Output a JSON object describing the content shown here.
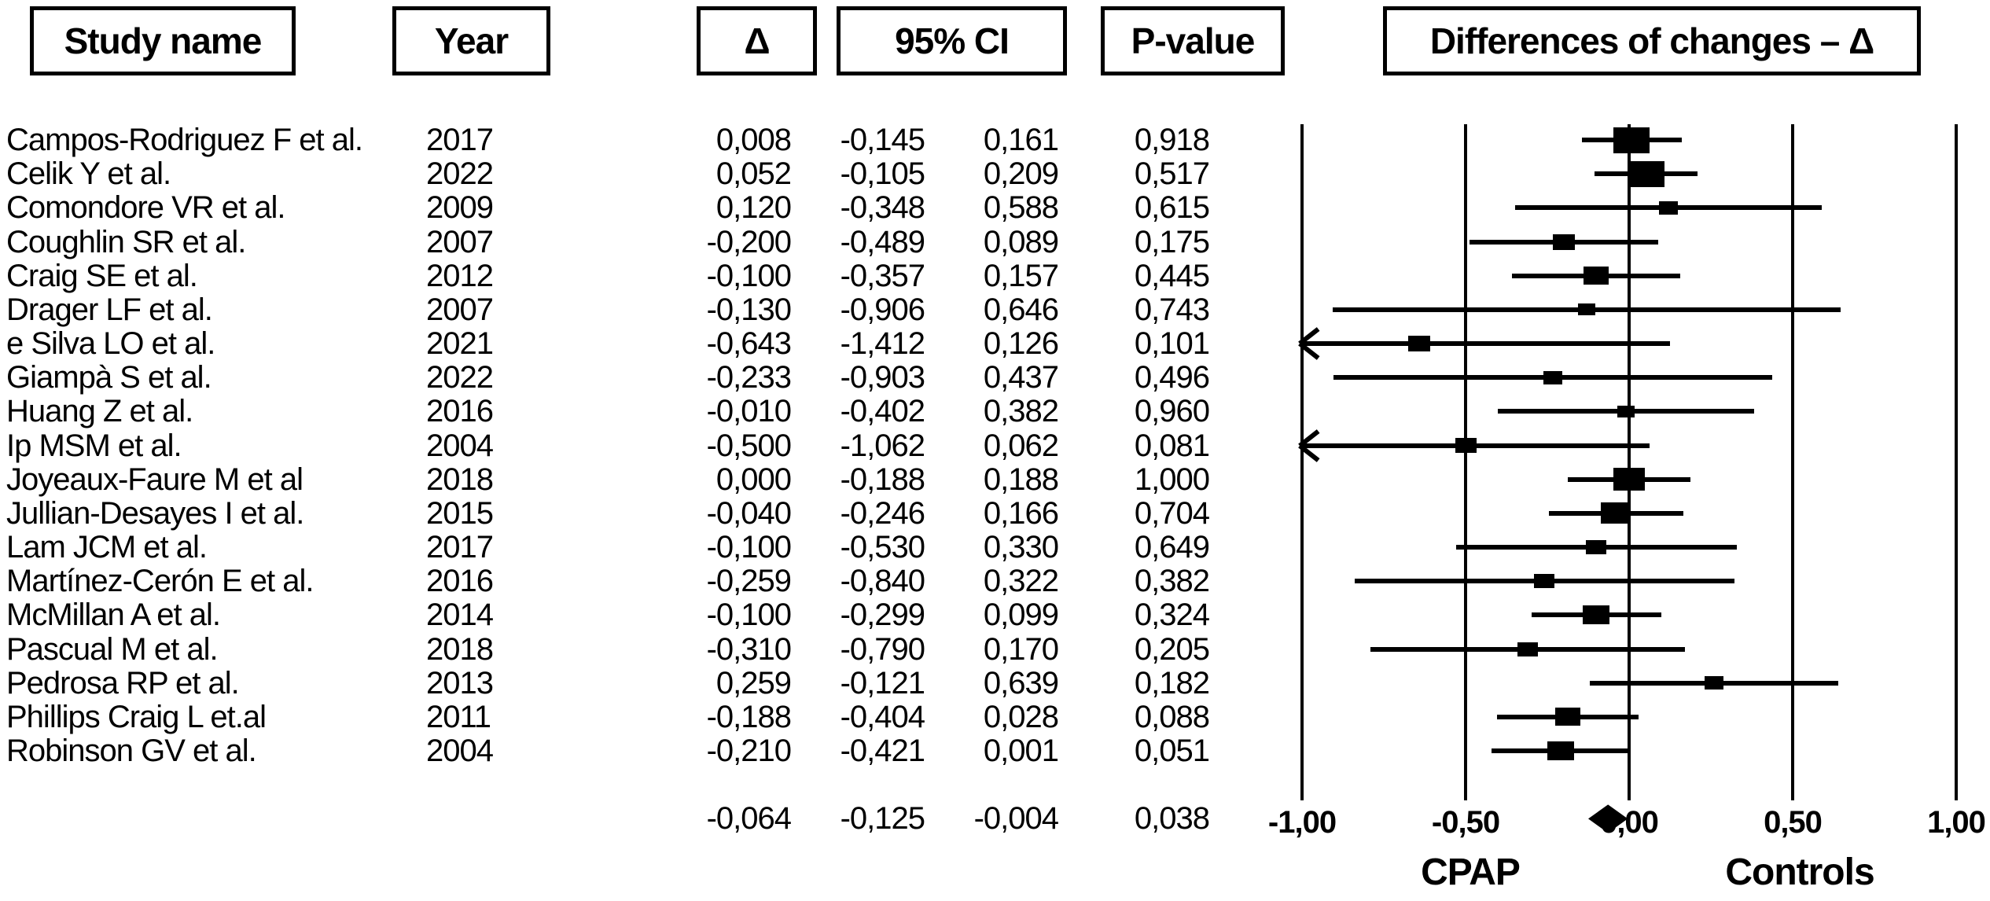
{
  "headers": {
    "study_name": "Study name",
    "year": "Year",
    "delta": "Δ",
    "ci": "95% CI",
    "p_value": "P-value",
    "plot_title": "Differences of changes – Δ"
  },
  "colors": {
    "ink": "#000000",
    "background": "#ffffff"
  },
  "chart_data": {
    "type": "forest",
    "title": "Differences of changes – Δ",
    "x_axis": {
      "min": -1.0,
      "max": 1.0,
      "tick_labels": [
        "-1,00",
        "-0,50",
        "0,00",
        "0,50",
        "1,00"
      ],
      "tick_values": [
        -1.0,
        -0.5,
        0.0,
        0.5,
        1.0
      ],
      "gridlines": true
    },
    "group_labels": {
      "left": "CPAP",
      "right": "Controls"
    },
    "studies": [
      {
        "name": "Campos-Rodriguez F et al.",
        "year": "2017",
        "delta": "0,008",
        "ci_low": "-0,145",
        "ci_high": "0,161",
        "p": "0,918",
        "delta_v": 0.008,
        "low_v": -0.145,
        "high_v": 0.161,
        "marker_w": 46,
        "marker_h": 33
      },
      {
        "name": "Celik Y et al.",
        "year": "2022",
        "delta": "0,052",
        "ci_low": "-0,105",
        "ci_high": "0,209",
        "p": "0,517",
        "delta_v": 0.052,
        "low_v": -0.105,
        "high_v": 0.209,
        "marker_w": 46,
        "marker_h": 33
      },
      {
        "name": "Comondore VR et al.",
        "year": "2009",
        "delta": "0,120",
        "ci_low": "-0,348",
        "ci_high": "0,588",
        "p": "0,615",
        "delta_v": 0.12,
        "low_v": -0.348,
        "high_v": 0.588,
        "marker_w": 24,
        "marker_h": 17
      },
      {
        "name": "Coughlin SR et al.",
        "year": "2007",
        "delta": "-0,200",
        "ci_low": "-0,489",
        "ci_high": "0,089",
        "p": "0,175",
        "delta_v": -0.2,
        "low_v": -0.489,
        "high_v": 0.089,
        "marker_w": 28,
        "marker_h": 20
      },
      {
        "name": "Craig SE et al.",
        "year": "2012",
        "delta": "-0,100",
        "ci_low": "-0,357",
        "ci_high": "0,157",
        "p": "0,445",
        "delta_v": -0.1,
        "low_v": -0.357,
        "high_v": 0.157,
        "marker_w": 32,
        "marker_h": 23
      },
      {
        "name": "Drager LF et al.",
        "year": "2007",
        "delta": "-0,130",
        "ci_low": "-0,906",
        "ci_high": "0,646",
        "p": "0,743",
        "delta_v": -0.13,
        "low_v": -0.906,
        "high_v": 0.646,
        "marker_w": 22,
        "marker_h": 15
      },
      {
        "name": "e Silva LO et al.",
        "year": "2021",
        "delta": "-0,643",
        "ci_low": "-1,412",
        "ci_high": "0,126",
        "p": "0,101",
        "delta_v": -0.643,
        "low_v": -1.412,
        "high_v": 0.126,
        "marker_w": 28,
        "marker_h": 20
      },
      {
        "name": "Giampà S et al.",
        "year": "2022",
        "delta": "-0,233",
        "ci_low": "-0,903",
        "ci_high": "0,437",
        "p": "0,496",
        "delta_v": -0.233,
        "low_v": -0.903,
        "high_v": 0.437,
        "marker_w": 24,
        "marker_h": 17
      },
      {
        "name": "Huang Z et al.",
        "year": "2016",
        "delta": "-0,010",
        "ci_low": "-0,402",
        "ci_high": "0,382",
        "p": "0,960",
        "delta_v": -0.01,
        "low_v": -0.402,
        "high_v": 0.382,
        "marker_w": 22,
        "marker_h": 15
      },
      {
        "name": "Ip MSM et al.",
        "year": "2004",
        "delta": "-0,500",
        "ci_low": "-1,062",
        "ci_high": "0,062",
        "p": "0,081",
        "delta_v": -0.5,
        "low_v": -1.062,
        "high_v": 0.062,
        "marker_w": 27,
        "marker_h": 19
      },
      {
        "name": "Joyeaux-Faure M et al",
        "year": "2018",
        "delta": "0,000",
        "ci_low": "-0,188",
        "ci_high": "0,188",
        "p": "1,000",
        "delta_v": 0.0,
        "low_v": -0.188,
        "high_v": 0.188,
        "marker_w": 40,
        "marker_h": 29
      },
      {
        "name": "Jullian-Desayes I et al.",
        "year": "2015",
        "delta": "-0,040",
        "ci_low": "-0,246",
        "ci_high": "0,166",
        "p": "0,704",
        "delta_v": -0.04,
        "low_v": -0.246,
        "high_v": 0.166,
        "marker_w": 38,
        "marker_h": 27
      },
      {
        "name": "Lam JCM et al.",
        "year": "2017",
        "delta": "-0,100",
        "ci_low": "-0,530",
        "ci_high": "0,330",
        "p": "0,649",
        "delta_v": -0.1,
        "low_v": -0.53,
        "high_v": 0.33,
        "marker_w": 26,
        "marker_h": 18
      },
      {
        "name": "Martínez-Cerón E et al.",
        "year": "2016",
        "delta": "-0,259",
        "ci_low": "-0,840",
        "ci_high": "0,322",
        "p": "0,382",
        "delta_v": -0.259,
        "low_v": -0.84,
        "high_v": 0.322,
        "marker_w": 26,
        "marker_h": 18
      },
      {
        "name": "McMillan A et al.",
        "year": "2014",
        "delta": "-0,100",
        "ci_low": "-0,299",
        "ci_high": "0,099",
        "p": "0,324",
        "delta_v": -0.1,
        "low_v": -0.299,
        "high_v": 0.099,
        "marker_w": 34,
        "marker_h": 24
      },
      {
        "name": "Pascual M et al.",
        "year": "2018",
        "delta": "-0,310",
        "ci_low": "-0,790",
        "ci_high": "0,170",
        "p": "0,205",
        "delta_v": -0.31,
        "low_v": -0.79,
        "high_v": 0.17,
        "marker_w": 26,
        "marker_h": 18
      },
      {
        "name": "Pedrosa RP et al.",
        "year": "2013",
        "delta": "0,259",
        "ci_low": "-0,121",
        "ci_high": "0,639",
        "p": "0,182",
        "delta_v": 0.259,
        "low_v": -0.121,
        "high_v": 0.639,
        "marker_w": 24,
        "marker_h": 17
      },
      {
        "name": "Phillips Craig L et.al",
        "year": "2011",
        "delta": "-0,188",
        "ci_low": "-0,404",
        "ci_high": "0,028",
        "p": "0,088",
        "delta_v": -0.188,
        "low_v": -0.404,
        "high_v": 0.028,
        "marker_w": 32,
        "marker_h": 23
      },
      {
        "name": "Robinson GV et al.",
        "year": "2004",
        "delta": "-0,210",
        "ci_low": "-0,421",
        "ci_high": "0,001",
        "p": "0,051",
        "delta_v": -0.21,
        "low_v": -0.421,
        "high_v": 0.001,
        "marker_w": 34,
        "marker_h": 24
      }
    ],
    "summary": {
      "delta": "-0,064",
      "ci_low": "-0,125",
      "ci_high": "-0,004",
      "p": "0,038",
      "delta_v": -0.064,
      "low_v": -0.125,
      "high_v": -0.004
    }
  }
}
